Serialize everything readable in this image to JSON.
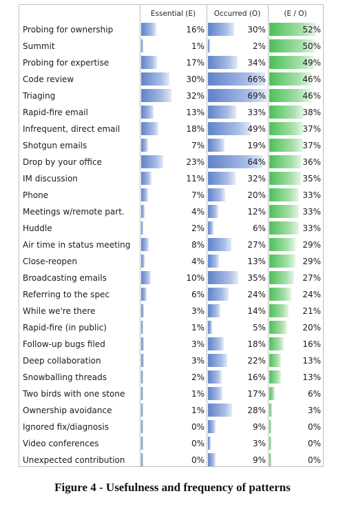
{
  "caption": "Figure 4 - Usefulness and frequency of patterns",
  "colors": {
    "bar_blue": "#5f82c9",
    "bar_green": "#4bc055",
    "border": "#bdbdbd"
  },
  "chart_data": {
    "type": "table",
    "columns": [
      "Essential (E)",
      "Occurred (O)",
      "(E / O)"
    ],
    "categories": [
      "Probing for ownership",
      "Summit",
      "Probing for expertise",
      "Code review",
      "Triaging",
      "Rapid-fire email",
      "Infrequent, direct email",
      "Shotgun emails",
      "Drop by your office",
      "IM discussion",
      "Phone",
      "Meetings w/remote part.",
      "Huddle",
      "Air time in status meeting",
      "Close-reopen",
      "Broadcasting emails",
      "Referring to the spec",
      "While we're there",
      "Rapid-fire (in public)",
      "Follow-up bugs filed",
      "Deep collaboration",
      "Snowballing threads",
      "Two birds with one stone",
      "Ownership avoidance",
      "Ignored fix/diagnosis",
      "Video conferences",
      "Unexpected contribution"
    ],
    "series": [
      {
        "name": "Essential (E)",
        "unit": "%",
        "values": [
          16,
          1,
          17,
          30,
          32,
          13,
          18,
          7,
          23,
          11,
          7,
          4,
          2,
          8,
          4,
          10,
          6,
          3,
          1,
          3,
          3,
          2,
          1,
          1,
          0,
          0,
          0
        ]
      },
      {
        "name": "Occurred (O)",
        "unit": "%",
        "values": [
          30,
          2,
          34,
          66,
          69,
          33,
          49,
          19,
          64,
          32,
          20,
          12,
          6,
          27,
          13,
          35,
          24,
          14,
          5,
          18,
          22,
          16,
          17,
          28,
          9,
          3,
          9
        ]
      },
      {
        "name": "(E / O)",
        "unit": "%",
        "values": [
          52,
          50,
          49,
          46,
          46,
          38,
          37,
          37,
          36,
          35,
          33,
          33,
          33,
          29,
          29,
          27,
          24,
          21,
          20,
          16,
          13,
          13,
          6,
          3,
          0,
          0,
          0
        ]
      }
    ]
  }
}
